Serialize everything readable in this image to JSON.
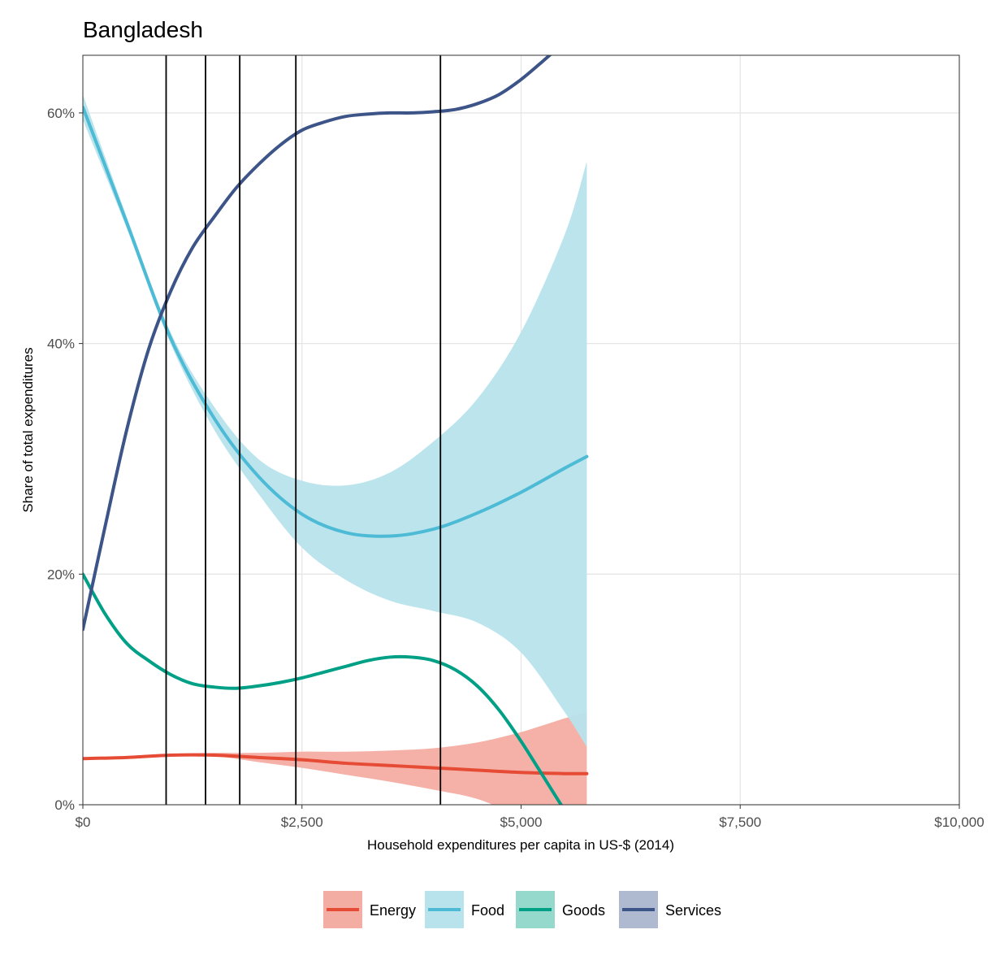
{
  "chart_data": {
    "type": "line",
    "title": "Bangladesh",
    "xlabel": "Household expenditures per capita in US-$ (2014)",
    "ylabel": "Share of total expenditures",
    "xlim": [
      0,
      10000
    ],
    "ylim": [
      0,
      0.65
    ],
    "x_ticks": [
      0,
      2500,
      5000,
      7500,
      10000
    ],
    "x_tick_labels": [
      "$0",
      "$2,500",
      "$5,000",
      "$7,500",
      "$10,000"
    ],
    "y_ticks": [
      0,
      0.2,
      0.4,
      0.6
    ],
    "y_tick_labels": [
      "0%",
      "20%",
      "40%",
      "60%"
    ],
    "grid": true,
    "legend_position": "bottom",
    "vlines": [
      950,
      1400,
      1790,
      2430,
      4080
    ],
    "series": [
      {
        "name": "Energy",
        "color": "#E64B35",
        "band_color": "#F4ADA2",
        "x": [
          0,
          500,
          1000,
          1500,
          2000,
          2500,
          3000,
          3500,
          4000,
          4500,
          5000,
          5500,
          5750
        ],
        "y": [
          0.04,
          0.041,
          0.043,
          0.043,
          0.041,
          0.039,
          0.036,
          0.034,
          0.032,
          0.03,
          0.028,
          0.027,
          0.027
        ],
        "band_x": [
          0,
          500,
          1000,
          1500,
          2000,
          2500,
          3000,
          3500,
          4000,
          4500,
          5000,
          5500,
          5750
        ],
        "band_upper": [
          0.041,
          0.042,
          0.044,
          0.045,
          0.045,
          0.046,
          0.046,
          0.047,
          0.049,
          0.054,
          0.063,
          0.075,
          0.08
        ],
        "band_lower": [
          0.039,
          0.04,
          0.042,
          0.042,
          0.037,
          0.032,
          0.026,
          0.02,
          0.013,
          0.005,
          -0.01,
          -0.02,
          -0.025
        ]
      },
      {
        "name": "Food",
        "color": "#4DBBD5",
        "band_color": "#B8E3EC",
        "x": [
          0,
          500,
          1000,
          1500,
          2000,
          2500,
          3000,
          3500,
          4000,
          4500,
          5000,
          5500,
          5750
        ],
        "y": [
          0.605,
          0.505,
          0.405,
          0.335,
          0.285,
          0.252,
          0.236,
          0.233,
          0.239,
          0.253,
          0.271,
          0.292,
          0.302
        ],
        "band_x": [
          0,
          500,
          1000,
          1500,
          2000,
          2500,
          3000,
          3500,
          4000,
          4500,
          5000,
          5500,
          5750
        ],
        "band_upper": [
          0.616,
          0.51,
          0.41,
          0.345,
          0.3,
          0.281,
          0.277,
          0.288,
          0.315,
          0.352,
          0.41,
          0.495,
          0.558
        ],
        "band_lower": [
          0.594,
          0.5,
          0.4,
          0.325,
          0.27,
          0.223,
          0.195,
          0.177,
          0.168,
          0.158,
          0.132,
          0.08,
          0.05
        ]
      },
      {
        "name": "Goods",
        "color": "#00A087",
        "band_color": "#94D9CC",
        "x": [
          0,
          250,
          500,
          750,
          1000,
          1250,
          1500,
          1750,
          2000,
          2250,
          2500,
          2750,
          3000,
          3250,
          3500,
          3750,
          4000,
          4250,
          4500,
          4750,
          5000,
          5250,
          5500,
          5580
        ],
        "y": [
          0.2,
          0.166,
          0.14,
          0.125,
          0.113,
          0.105,
          0.102,
          0.101,
          0.103,
          0.106,
          0.11,
          0.115,
          0.12,
          0.125,
          0.128,
          0.128,
          0.125,
          0.117,
          0.103,
          0.082,
          0.055,
          0.025,
          -0.005,
          -0.01
        ]
      },
      {
        "name": "Services",
        "color": "#3C5488",
        "band_color": "#AFB9CF",
        "x": [
          0,
          250,
          500,
          750,
          1000,
          1250,
          1500,
          1750,
          2000,
          2250,
          2500,
          2750,
          3000,
          3250,
          3500,
          3750,
          4000,
          4250,
          4500,
          4750,
          5000,
          5250,
          5500,
          5750,
          6000,
          6250
        ],
        "y": [
          0.152,
          0.24,
          0.325,
          0.395,
          0.445,
          0.483,
          0.51,
          0.535,
          0.555,
          0.572,
          0.585,
          0.592,
          0.597,
          0.599,
          0.6,
          0.6,
          0.601,
          0.603,
          0.608,
          0.616,
          0.629,
          0.645,
          0.662,
          0.68,
          0.698,
          0.716
        ]
      }
    ]
  }
}
